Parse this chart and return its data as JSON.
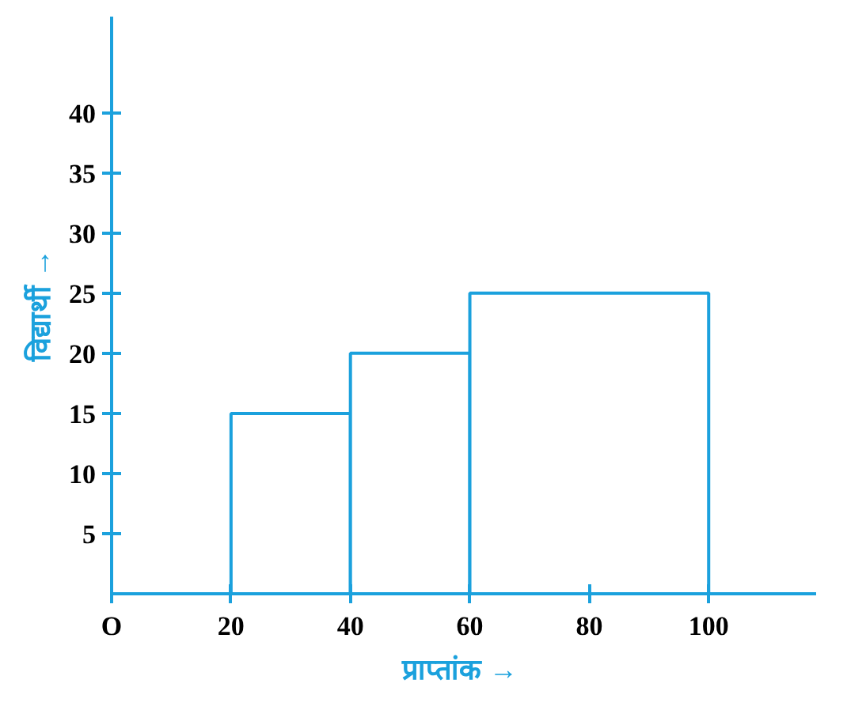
{
  "chart_data": {
    "type": "histogram",
    "xlabel": "प्राप्तांक  →",
    "ylabel": "विद्यार्थी →",
    "bins": [
      20,
      40,
      60,
      100
    ],
    "values": [
      15,
      20,
      25
    ],
    "color": "#1ba1dd",
    "xlim": [
      0,
      118
    ],
    "ylim": [
      0,
      48
    ],
    "xticks": [
      {
        "value": 0,
        "label": "O"
      },
      20,
      40,
      60,
      80,
      100
    ],
    "yticks": [
      5,
      10,
      15,
      20,
      25,
      30,
      35,
      40
    ],
    "grid": false
  }
}
